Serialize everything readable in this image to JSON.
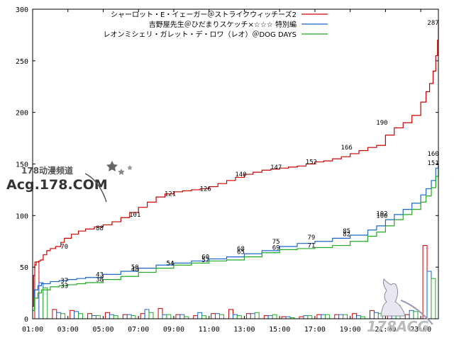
{
  "chart_data": {
    "type": "line",
    "title": "",
    "xlabel": "",
    "ylabel": "",
    "ylim": [
      0,
      300
    ],
    "xlim": [
      0,
      23
    ],
    "yticks": [
      "0",
      "50",
      "100",
      "150",
      "200",
      "250",
      "300"
    ],
    "xticks": [
      "01:00",
      "03:00",
      "05:00",
      "07:00",
      "09:00",
      "11:00",
      "13:00",
      "15:00",
      "17:00",
      "19:00",
      "21:00",
      "23:00"
    ],
    "x_tick_hours": [
      0,
      2,
      4,
      6,
      8,
      10,
      12,
      14,
      16,
      18,
      20,
      22
    ],
    "legend_position": "top-center",
    "series": [
      {
        "name": "シャーロット・E・イェーガー＠ストライクウィッチーズ2",
        "color": "#cc0000",
        "x": [
          0,
          0.05,
          0.12,
          0.2,
          0.35,
          0.45,
          0.6,
          0.8,
          1.0,
          1.3,
          1.6,
          1.8,
          2.2,
          2.6,
          3.0,
          3.5,
          4.0,
          4.5,
          5.0,
          5.5,
          6.0,
          6.5,
          7.0,
          7.5,
          8.0,
          8.5,
          9.0,
          9.5,
          10.0,
          10.5,
          11.0,
          11.5,
          12.0,
          12.5,
          13.0,
          13.5,
          14.0,
          14.5,
          15.0,
          15.5,
          16.0,
          16.5,
          17.0,
          17.5,
          18.0,
          18.5,
          19.0,
          19.5,
          20.0,
          20.5,
          21.0,
          21.5,
          22.0,
          22.3,
          22.5,
          22.7,
          22.85,
          22.95,
          23.0
        ],
        "y": [
          12,
          42,
          52,
          55,
          56,
          57,
          62,
          66,
          68,
          70,
          74,
          78,
          82,
          85,
          87,
          89,
          91,
          94,
          98,
          103,
          108,
          113,
          118,
          121,
          123,
          124,
          125,
          126,
          128,
          131,
          134,
          137,
          140,
          142,
          144,
          145,
          146,
          147,
          148,
          150,
          152,
          153,
          155,
          157,
          160,
          163,
          166,
          168,
          178,
          185,
          190,
          197,
          210,
          220,
          228,
          240,
          255,
          270,
          287
        ]
      },
      {
        "name": "吉野屋先生＠ひだまりスケッチ×☆☆☆ 特別編",
        "color": "#1a66cc",
        "x": [
          0,
          0.1,
          0.3,
          0.5,
          1.0,
          1.5,
          2.0,
          2.5,
          3.0,
          4.0,
          5.0,
          6.0,
          7.0,
          8.0,
          9.0,
          10.0,
          11.0,
          12.0,
          13.0,
          14.0,
          15.0,
          16.0,
          17.0,
          18.0,
          19.0,
          19.5,
          20.0,
          20.5,
          21.0,
          21.5,
          22.0,
          22.3,
          22.6,
          22.85,
          23.0
        ],
        "y": [
          15,
          28,
          32,
          34,
          36,
          37,
          38,
          39,
          40,
          43,
          46,
          49,
          52,
          54,
          56,
          58,
          60,
          63,
          66,
          70,
          73,
          75,
          78,
          81,
          86,
          90,
          96,
          101,
          106,
          112,
          120,
          126,
          134,
          146,
          160
        ]
      },
      {
        "name": "レオンミシェリ・ガレット・デ・ロワ（レオ）＠DOG DAYS",
        "color": "#22aa22",
        "x": [
          0,
          0.1,
          0.3,
          0.5,
          1.0,
          1.5,
          2.0,
          2.5,
          3.0,
          4.0,
          5.0,
          6.0,
          7.0,
          8.0,
          9.0,
          10.0,
          11.0,
          12.0,
          13.0,
          14.0,
          15.0,
          16.0,
          17.0,
          18.0,
          19.0,
          19.5,
          20.0,
          20.5,
          21.0,
          21.5,
          22.0,
          22.3,
          22.6,
          22.85,
          23.0
        ],
        "y": [
          8,
          20,
          25,
          28,
          31,
          32,
          33,
          34,
          35,
          38,
          41,
          45,
          49,
          52,
          54,
          56,
          57,
          60,
          64,
          67,
          68,
          69,
          71,
          75,
          80,
          84,
          90,
          96,
          101,
          106,
          113,
          119,
          127,
          138,
          151
        ]
      }
    ],
    "annotations": [
      {
        "series": 0,
        "text": "70",
        "x": 1.8,
        "y": 70
      },
      {
        "series": 0,
        "text": "88",
        "x": 3.8,
        "y": 88
      },
      {
        "series": 0,
        "text": "101",
        "x": 5.8,
        "y": 101
      },
      {
        "series": 0,
        "text": "121",
        "x": 7.8,
        "y": 121
      },
      {
        "series": 0,
        "text": "126",
        "x": 9.8,
        "y": 126
      },
      {
        "series": 0,
        "text": "140",
        "x": 11.8,
        "y": 140
      },
      {
        "series": 0,
        "text": "147",
        "x": 13.8,
        "y": 147
      },
      {
        "series": 0,
        "text": "152",
        "x": 15.8,
        "y": 152
      },
      {
        "series": 0,
        "text": "166",
        "x": 17.8,
        "y": 166
      },
      {
        "series": 0,
        "text": "190",
        "x": 19.8,
        "y": 190
      },
      {
        "series": 0,
        "text": "287",
        "x": 22.7,
        "y": 287
      },
      {
        "series": 1,
        "text": "37",
        "x": 1.8,
        "y": 37
      },
      {
        "series": 1,
        "text": "43",
        "x": 3.8,
        "y": 43
      },
      {
        "series": 1,
        "text": "50",
        "x": 5.8,
        "y": 50
      },
      {
        "series": 1,
        "text": "54",
        "x": 7.8,
        "y": 54
      },
      {
        "series": 1,
        "text": "60",
        "x": 9.8,
        "y": 60
      },
      {
        "series": 1,
        "text": "68",
        "x": 11.8,
        "y": 68
      },
      {
        "series": 1,
        "text": "75",
        "x": 13.8,
        "y": 75
      },
      {
        "series": 1,
        "text": "79",
        "x": 15.8,
        "y": 79
      },
      {
        "series": 1,
        "text": "85",
        "x": 17.8,
        "y": 85
      },
      {
        "series": 1,
        "text": "102",
        "x": 19.8,
        "y": 102
      },
      {
        "series": 1,
        "text": "160",
        "x": 22.7,
        "y": 160
      },
      {
        "series": 2,
        "text": "33",
        "x": 1.8,
        "y": 32
      },
      {
        "series": 2,
        "text": "38",
        "x": 3.8,
        "y": 38
      },
      {
        "series": 2,
        "text": "48",
        "x": 5.8,
        "y": 48
      },
      {
        "series": 2,
        "text": "54",
        "x": 7.8,
        "y": 54
      },
      {
        "series": 2,
        "text": "57",
        "x": 9.8,
        "y": 57
      },
      {
        "series": 2,
        "text": "65",
        "x": 11.8,
        "y": 65
      },
      {
        "series": 2,
        "text": "69",
        "x": 13.8,
        "y": 69
      },
      {
        "series": 2,
        "text": "71",
        "x": 15.8,
        "y": 71
      },
      {
        "series": 2,
        "text": "82",
        "x": 17.8,
        "y": 82
      },
      {
        "series": 2,
        "text": "100",
        "x": 19.8,
        "y": 100
      },
      {
        "series": 2,
        "text": "151",
        "x": 22.7,
        "y": 151
      }
    ],
    "hourly_bars": {
      "hours": [
        0,
        1,
        2,
        3,
        4,
        5,
        6,
        7,
        8,
        9,
        10,
        11,
        12,
        13,
        14,
        15,
        16,
        17,
        18,
        19,
        20,
        21,
        22
      ],
      "series0": [
        55,
        9,
        8,
        5,
        6,
        4,
        5,
        10,
        4,
        3,
        5,
        9,
        5,
        3,
        2,
        2,
        4,
        4,
        5,
        8,
        26,
        4,
        71
      ],
      "series1": [
        35,
        6,
        7,
        3,
        4,
        4,
        9,
        4,
        4,
        6,
        5,
        4,
        5,
        3,
        2,
        3,
        4,
        4,
        3,
        6,
        10,
        8,
        46
      ],
      "series2": [
        30,
        5,
        5,
        3,
        3,
        3,
        6,
        4,
        2,
        3,
        4,
        3,
        6,
        4,
        1,
        3,
        4,
        4,
        2,
        5,
        13,
        7,
        39
      ]
    }
  },
  "watermark": {
    "top": "178动漫频道",
    "main": "Acg.178.COM",
    "bottom_right": "178ACG"
  }
}
